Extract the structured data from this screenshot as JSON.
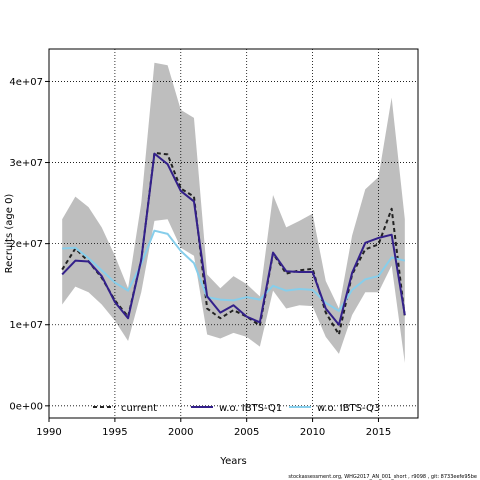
{
  "chart_data": {
    "type": "line",
    "xlabel": "Years",
    "ylabel": "Recruits (age 0)",
    "xlim": [
      1990,
      2018
    ],
    "ylim": [
      -1500000,
      44000000
    ],
    "x_ticks": [
      1990,
      1995,
      2000,
      2005,
      2010,
      2015
    ],
    "y_ticks": [
      0,
      10000000,
      20000000,
      30000000,
      40000000
    ],
    "y_tick_labels": [
      "0e+00",
      "1e+07",
      "2e+07",
      "3e+07",
      "4e+07"
    ],
    "grid": true,
    "legend_position": "bottom",
    "x": [
      1991,
      1992,
      1993,
      1994,
      1995,
      1996,
      1997,
      1998,
      1999,
      2000,
      2001,
      2002,
      2003,
      2004,
      2005,
      2006,
      2007,
      2008,
      2009,
      2010,
      2011,
      2012,
      2013,
      2014,
      2015,
      2016,
      2017
    ],
    "band": {
      "upper": [
        23000000,
        25800000,
        24500000,
        22000000,
        18500000,
        14500000,
        25000000,
        42300000,
        42000000,
        36500000,
        35500000,
        16200000,
        14500000,
        16000000,
        15000000,
        13500000,
        26000000,
        22000000,
        22800000,
        23700000,
        15400000,
        12000000,
        21000000,
        26700000,
        28200000,
        38000000,
        23000000
      ],
      "lower": [
        12500000,
        14700000,
        14000000,
        12500000,
        10500000,
        8000000,
        14000000,
        22800000,
        23000000,
        19500000,
        18500000,
        8800000,
        8300000,
        9000000,
        8500000,
        7300000,
        14200000,
        12000000,
        12400000,
        12300000,
        8500000,
        6400000,
        11200000,
        14000000,
        14000000,
        17300000,
        5300000
      ],
      "color": "#bebebe"
    },
    "series": [
      {
        "name": "current",
        "color": "#222222",
        "dash": "4,3",
        "width": 2,
        "values": [
          16800000,
          19400000,
          17800000,
          15800000,
          13000000,
          11000000,
          18000000,
          31200000,
          31000000,
          26800000,
          25800000,
          12000000,
          10800000,
          11800000,
          11000000,
          9900000,
          18800000,
          16300000,
          16700000,
          16900000,
          11500000,
          8800000,
          16200000,
          19300000,
          19900000,
          24300000,
          11000000
        ]
      },
      {
        "name": "w.o. IBTS-Q1",
        "color": "#33208a",
        "dash": "",
        "width": 2,
        "values": [
          16200000,
          17900000,
          17800000,
          16000000,
          12800000,
          10800000,
          18000000,
          31100000,
          29800000,
          26500000,
          25200000,
          13500000,
          11500000,
          12400000,
          11000000,
          10300000,
          18900000,
          16600000,
          16500000,
          16500000,
          12000000,
          10000000,
          16400000,
          20100000,
          20700000,
          21100000,
          11200000
        ]
      },
      {
        "name": "w.o. IBTS-Q3",
        "color": "#87ceeb",
        "dash": "",
        "width": 2,
        "values": [
          19400000,
          19500000,
          18200000,
          16700000,
          15200000,
          14200000,
          17500000,
          21600000,
          21200000,
          19100000,
          17600000,
          13400000,
          13100000,
          13000000,
          13400000,
          13100000,
          14800000,
          14200000,
          14400000,
          14300000,
          12700000,
          11700000,
          14300000,
          15600000,
          16000000,
          18300000,
          17900000
        ]
      }
    ]
  },
  "footer": "stockassessment.org, WHG2017_AN_001_short , r9098 , git: 8733eefe95be"
}
